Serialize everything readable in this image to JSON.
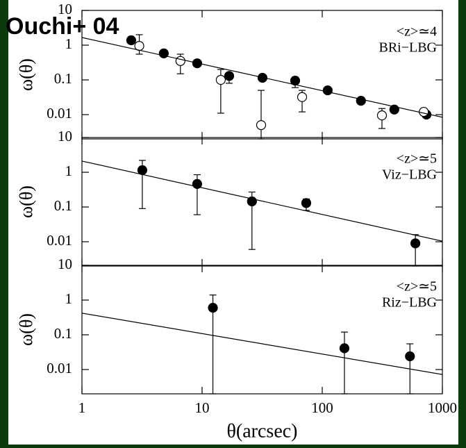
{
  "title": "Ouchi+ 04",
  "chart_data": [
    {
      "type": "scatter",
      "ylabel": "ω(θ)",
      "annotations": [
        "<z>≃4",
        "BRi−LBG"
      ],
      "log_x": true,
      "log_y": true,
      "xlim": [
        1,
        1000
      ],
      "xticks": [
        1,
        10,
        100,
        1000
      ],
      "ylim": [
        0.002,
        10
      ],
      "yticks": [
        0.01,
        0.1,
        1,
        10
      ],
      "series": [
        {
          "style": "filled",
          "color": "#000000",
          "x": [
            2.57,
            4.8,
            9.1,
            16.8,
            31.8,
            59.5,
            111,
            210,
            398,
            737
          ],
          "values": [
            1.38,
            0.58,
            0.3,
            0.13,
            0.115,
            0.095,
            0.05,
            0.025,
            0.014,
            0.01
          ],
          "lower": [
            null,
            null,
            null,
            0.08,
            null,
            0.06,
            null,
            null,
            null,
            null
          ],
          "upper": [
            null,
            null,
            null,
            0.16,
            null,
            0.12,
            null,
            null,
            null,
            null
          ]
        },
        {
          "style": "open",
          "color": "#000000",
          "x": [
            3.0,
            6.6,
            14.3,
            31,
            68,
            314,
            700
          ],
          "values": [
            0.95,
            0.35,
            0.1,
            0.005,
            0.032,
            0.0095,
            0.012
          ],
          "lower": [
            0.55,
            0.15,
            0.011,
            0.002,
            0.012,
            0.004,
            null
          ],
          "upper": [
            2.0,
            0.55,
            0.2,
            0.05,
            0.05,
            0.015,
            null
          ]
        },
        {
          "style": "line",
          "color": "#000000",
          "x": [
            1,
            1000
          ],
          "values": [
            1.66,
            0.0084
          ]
        }
      ]
    },
    {
      "type": "scatter",
      "ylabel": "ω(θ)",
      "annotations": [
        "<z>≃5",
        "Viz−LBG"
      ],
      "log_x": true,
      "log_y": true,
      "xlim": [
        1,
        1000
      ],
      "xticks": [
        1,
        10,
        100,
        1000
      ],
      "ylim": [
        0.002,
        10
      ],
      "yticks": [
        0.01,
        0.1,
        1,
        10
      ],
      "series": [
        {
          "style": "filled",
          "color": "#000000",
          "x": [
            3.18,
            9.1,
            26,
            73.6,
            596
          ],
          "values": [
            1.15,
            0.46,
            0.145,
            0.13,
            0.009
          ],
          "lower": [
            0.09,
            0.06,
            0.006,
            0.08,
            0.002
          ],
          "upper": [
            2.2,
            0.85,
            0.27,
            0.17,
            0.016
          ]
        },
        {
          "style": "line",
          "color": "#000000",
          "x": [
            1,
            1000
          ],
          "values": [
            2.1,
            0.0104
          ]
        }
      ]
    },
    {
      "type": "scatter",
      "ylabel": "ω(θ)",
      "annotations": [
        "<z>≃5",
        "Riz−LBG"
      ],
      "log_x": true,
      "log_y": true,
      "xlim": [
        1,
        1000
      ],
      "xticks": [
        1,
        10,
        100,
        1000
      ],
      "ylim": [
        0.002,
        10
      ],
      "yticks": [
        0.01,
        0.1,
        1,
        10
      ],
      "xlabel": "θ(arcsec)",
      "series": [
        {
          "style": "filled",
          "color": "#000000",
          "x": [
            12.3,
            153,
            537
          ],
          "values": [
            0.6,
            0.041,
            0.024
          ],
          "lower": [
            0.002,
            0.002,
            0.002
          ],
          "upper": [
            1.4,
            0.12,
            0.055
          ]
        },
        {
          "style": "line",
          "color": "#000000",
          "x": [
            1,
            1000
          ],
          "values": [
            0.42,
            0.0072
          ]
        }
      ]
    }
  ]
}
